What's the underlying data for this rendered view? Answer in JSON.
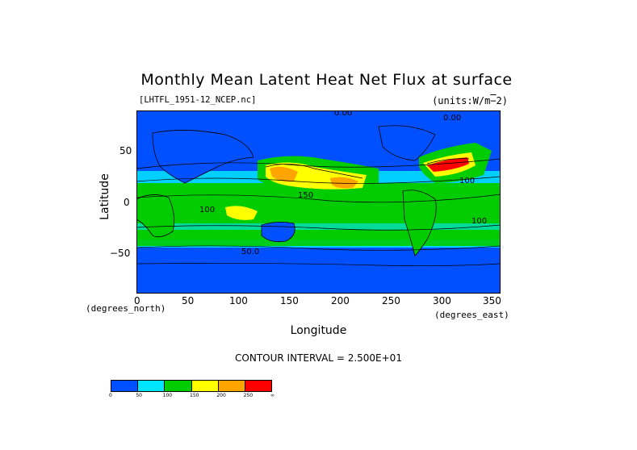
{
  "title": "Monthly Mean Latent Heat Net Flux at surface",
  "file_label": "[LHTFL_1951-12_NCEP.nc]",
  "units_label": "(units:W/m^2)",
  "axes": {
    "xlabel": "Longitude",
    "ylabel": "Latitude",
    "x_unit": "(degrees_east)",
    "y_unit": "(degrees_north)",
    "x_ticks": [
      "0",
      "50",
      "100",
      "150",
      "200",
      "250",
      "300",
      "350"
    ],
    "y_ticks": [
      "50",
      "0",
      "−50"
    ],
    "xlim": [
      0,
      357.5
    ],
    "ylim": [
      -90,
      90
    ]
  },
  "contour_interval": "CONTOUR INTERVAL = 2.500E+01",
  "contour_labels": [
    "0.00",
    "0.00",
    "150",
    "100",
    "100",
    "100",
    "50.0"
  ],
  "legend": {
    "colors": [
      "#0050ff",
      "#00e5ff",
      "#00cc00",
      "#ffff00",
      "#ffa500",
      "#ff0000"
    ],
    "ticks": [
      "0",
      "50",
      "100",
      "150",
      "200",
      "250",
      "∞"
    ]
  }
}
